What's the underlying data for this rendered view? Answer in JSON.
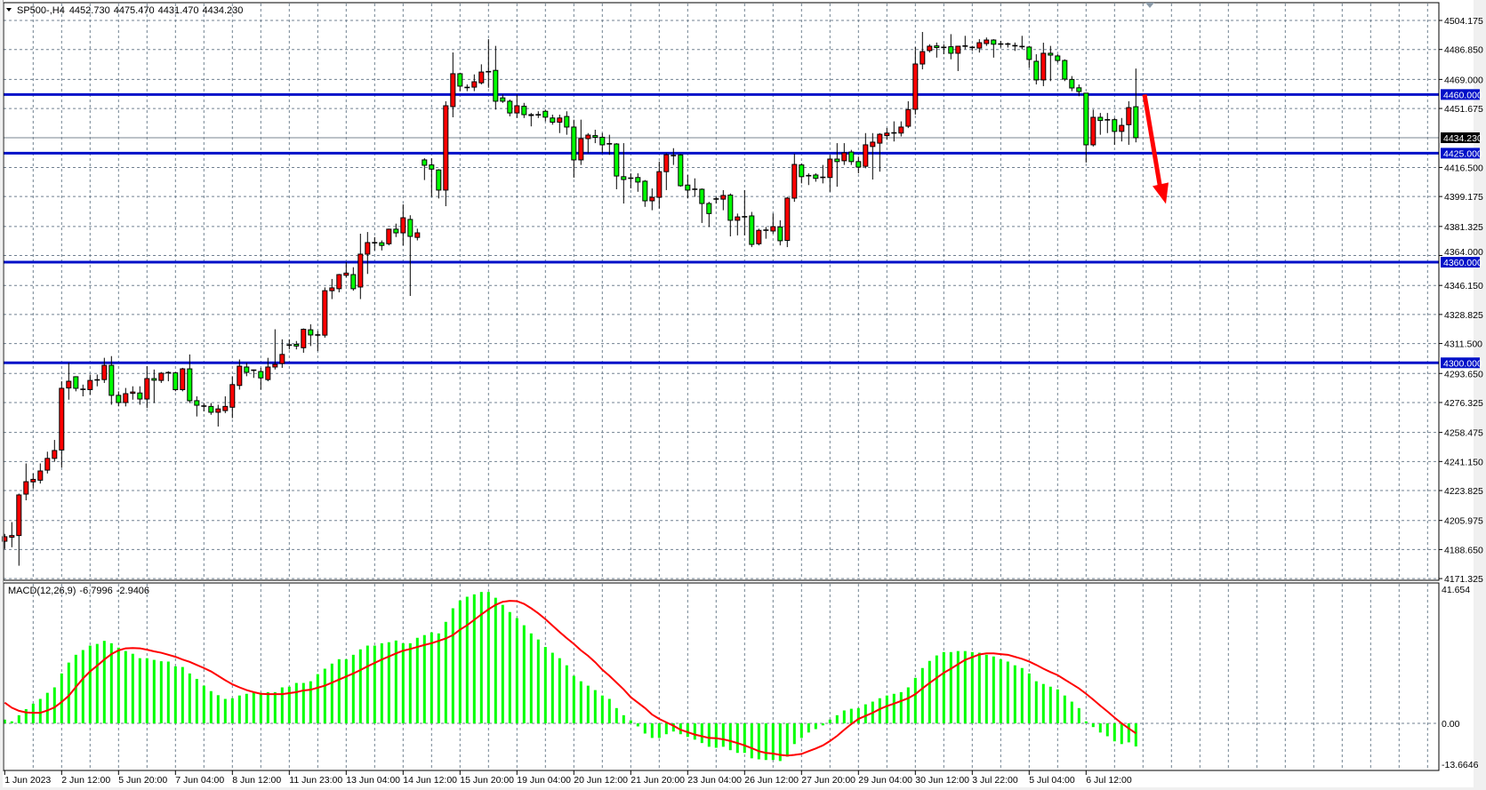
{
  "header": {
    "symbol": "SP500-,H4",
    "open": "4452.730",
    "high": "4475.470",
    "low": "4431.470",
    "close": "4434.230",
    "menu_icon": "triangle-down-icon"
  },
  "macd_header": {
    "label": "MACD(12,26,9)",
    "main": "-6.7996",
    "signal": "-2.9406"
  },
  "colors": {
    "bull_body": "#ff0000",
    "bear_body": "#00ff00",
    "wick": "#000000",
    "level_line": "#0010c8",
    "macd_histogram": "#00ff00",
    "macd_signal": "#ff0000",
    "arrow": "#ff0000",
    "grid": "#708090"
  },
  "price_axis": {
    "ticks": [
      "4504.175",
      "4486.850",
      "4469.000",
      "4451.675",
      "4416.500",
      "4399.175",
      "4381.325",
      "4364.000",
      "4346.150",
      "4328.825",
      "4311.500",
      "4293.650",
      "4276.325",
      "4258.475",
      "4241.150",
      "4223.825",
      "4205.975",
      "4188.650",
      "4171.325"
    ],
    "current_price": "4434.230",
    "levels": [
      "4460.000",
      "4425.000",
      "4360.000",
      "4300.000"
    ]
  },
  "macd_axis": {
    "ticks": [
      "41.654",
      "0.00",
      "-13.6646"
    ]
  },
  "time_axis": {
    "labels": [
      "1 Jun 2023",
      "2 Jun 12:00",
      "5 Jun 20:00",
      "7 Jun 04:00",
      "8 Jun 12:00",
      "11 Jun 23:00",
      "13 Jun 04:00",
      "14 Jun 12:00",
      "15 Jun 20:00",
      "19 Jun 04:00",
      "20 Jun 12:00",
      "21 Jun 20:00",
      "23 Jun 04:00",
      "26 Jun 12:00",
      "27 Jun 20:00",
      "29 Jun 04:00",
      "30 Jun 12:00",
      "3 Jul 22:00",
      "5 Jul 04:00",
      "6 Jul 12:00"
    ]
  },
  "annotation": {
    "type": "arrow",
    "direction": "down",
    "from_price": 4460,
    "to_price": 4398
  },
  "chart_data": {
    "type": "candlestick",
    "timeframe": "H4",
    "ylim": [
      4171.325,
      4504.175
    ],
    "grid": true,
    "candle_format": [
      "open",
      "high",
      "low",
      "close"
    ],
    "candles": [
      [
        4193.6,
        4198,
        4189,
        4196.3
      ],
      [
        4196,
        4205,
        4190,
        4197
      ],
      [
        4197,
        4222,
        4179,
        4221.2
      ],
      [
        4221.7,
        4240,
        4218,
        4229.1
      ],
      [
        4229,
        4234,
        4225,
        4230.5
      ],
      [
        4230,
        4240,
        4228,
        4235.5
      ],
      [
        4236,
        4247,
        4234,
        4243
      ],
      [
        4243,
        4254,
        4241,
        4247.7
      ],
      [
        4248,
        4289,
        4237.6,
        4284.8
      ],
      [
        4285,
        4300,
        4278,
        4289
      ],
      [
        4291.7,
        4292,
        4283,
        4284.8
      ],
      [
        4284,
        4287,
        4280,
        4284.2
      ],
      [
        4284,
        4293,
        4281,
        4289.5
      ],
      [
        4289.5,
        4293,
        4286,
        4289.8
      ],
      [
        4290,
        4303,
        4288,
        4298.5
      ],
      [
        4298.5,
        4304,
        4275,
        4280.6
      ],
      [
        4280.6,
        4283,
        4274,
        4276.3
      ],
      [
        4276.3,
        4285,
        4274,
        4281.6
      ],
      [
        4281.8,
        4286,
        4278,
        4282.6
      ],
      [
        4282,
        4286,
        4275,
        4278.4
      ],
      [
        4278.4,
        4298,
        4273,
        4290.6
      ],
      [
        4290.6,
        4296,
        4276,
        4289.6
      ],
      [
        4289.5,
        4294.5,
        4288,
        4293.8
      ],
      [
        4294,
        4295,
        4289,
        4294.1
      ],
      [
        4294,
        4294.5,
        4283,
        4284
      ],
      [
        4284,
        4297,
        4283,
        4296.4
      ],
      [
        4296.4,
        4305,
        4276,
        4277.4
      ],
      [
        4277.4,
        4280,
        4268,
        4274.7
      ],
      [
        4274.5,
        4276,
        4271,
        4274.2
      ],
      [
        4274,
        4276,
        4269,
        4270.5
      ],
      [
        4270.5,
        4275,
        4262,
        4272.5
      ],
      [
        4271.5,
        4280,
        4270,
        4274
      ],
      [
        4273.5,
        4292,
        4267,
        4287
      ],
      [
        4286.5,
        4302,
        4284,
        4298
      ],
      [
        4297.5,
        4300,
        4292,
        4294.3
      ],
      [
        4295.5,
        4296,
        4291,
        4295.6
      ],
      [
        4294.8,
        4297,
        4284,
        4291
      ],
      [
        4290,
        4303,
        4289,
        4297.5
      ],
      [
        4297.5,
        4320,
        4296,
        4299.1
      ],
      [
        4299.6,
        4314,
        4297,
        4305
      ],
      [
        4311,
        4314,
        4308,
        4310.6
      ],
      [
        4311,
        4313,
        4308,
        4310
      ],
      [
        4309,
        4320.5,
        4306,
        4320
      ],
      [
        4319.7,
        4323,
        4310,
        4316.6
      ],
      [
        4316.5,
        4319,
        4307,
        4316.6
      ],
      [
        4316.5,
        4345,
        4315,
        4343
      ],
      [
        4343,
        4350,
        4338,
        4344.7
      ],
      [
        4344.2,
        4353,
        4342,
        4352.6
      ],
      [
        4352.2,
        4360,
        4351,
        4353.5
      ],
      [
        4352.6,
        4357,
        4343,
        4344.2
      ],
      [
        4345.2,
        4377,
        4338,
        4364.8
      ],
      [
        4364.8,
        4378,
        4353,
        4371.7
      ],
      [
        4371.5,
        4375,
        4367,
        4371.6
      ],
      [
        4371.6,
        4373,
        4367,
        4370
      ],
      [
        4371,
        4380,
        4370,
        4379.7
      ],
      [
        4379.7,
        4383,
        4375,
        4377.5
      ],
      [
        4377.5,
        4394.5,
        4370,
        4386.5
      ],
      [
        4385.5,
        4388,
        4339.9,
        4375.4
      ],
      [
        4374.8,
        4380,
        4373,
        4377.5
      ],
      [
        4421,
        4422,
        4409,
        4417.8
      ],
      [
        4418,
        4422,
        4399,
        4415.5
      ],
      [
        4415,
        4415.5,
        4398,
        4403
      ],
      [
        4403,
        4456,
        4393.4,
        4453.3
      ],
      [
        4452.8,
        4485.1,
        4446.4,
        4472.4
      ],
      [
        4472.4,
        4473,
        4462,
        4465
      ],
      [
        4464,
        4466,
        4462,
        4464.2
      ],
      [
        4464.4,
        4472,
        4462,
        4467.6
      ],
      [
        4467,
        4478,
        4466,
        4473.4
      ],
      [
        4473.5,
        4493,
        4464,
        4473.6
      ],
      [
        4474.4,
        4489,
        4451,
        4456
      ],
      [
        4458,
        4460,
        4455,
        4456
      ],
      [
        4456,
        4457,
        4447,
        4449
      ],
      [
        4449,
        4460,
        4446,
        4453.3
      ],
      [
        4453,
        4455,
        4446,
        4448
      ],
      [
        4448,
        4449,
        4441,
        4447.5
      ],
      [
        4448,
        4450,
        4446,
        4447.9
      ],
      [
        4450,
        4451,
        4444,
        4446.5
      ],
      [
        4446,
        4448,
        4442,
        4443.5
      ],
      [
        4443.5,
        4448,
        4437,
        4446
      ],
      [
        4446.9,
        4450,
        4436,
        4440.6
      ],
      [
        4440.6,
        4445,
        4410.4,
        4421
      ],
      [
        4421,
        4445,
        4418,
        4433.7
      ],
      [
        4433.7,
        4437,
        4425,
        4435.8
      ],
      [
        4435.5,
        4439,
        4431,
        4434.5
      ],
      [
        4434.5,
        4437,
        4425,
        4430
      ],
      [
        4430.5,
        4436,
        4424,
        4430.6
      ],
      [
        4430.5,
        4431,
        4403.5,
        4411.4
      ],
      [
        4411,
        4431,
        4395,
        4409.3
      ],
      [
        4410,
        4413,
        4404,
        4410.1
      ],
      [
        4410.5,
        4413,
        4402,
        4407.8
      ],
      [
        4408.3,
        4409,
        4393,
        4396.6
      ],
      [
        4396.6,
        4404,
        4391,
        4398.7
      ],
      [
        4398.7,
        4420,
        4392,
        4414
      ],
      [
        4414,
        4425,
        4403,
        4424.1
      ],
      [
        4423.5,
        4428,
        4418,
        4423.6
      ],
      [
        4424,
        4424.5,
        4405,
        4405.6
      ],
      [
        4406,
        4412,
        4398,
        4403
      ],
      [
        4403.4,
        4410,
        4399,
        4403.5
      ],
      [
        4403.5,
        4404,
        4383.4,
        4395
      ],
      [
        4395,
        4396,
        4381,
        4389
      ],
      [
        4397.6,
        4399,
        4395,
        4397.7
      ],
      [
        4397.6,
        4403,
        4391,
        4399.8
      ],
      [
        4400,
        4401,
        4375.4,
        4385
      ],
      [
        4385,
        4389,
        4376,
        4387
      ],
      [
        4387,
        4403,
        4376,
        4387.1
      ],
      [
        4387.6,
        4390,
        4369,
        4370.6
      ],
      [
        4371,
        4380,
        4370,
        4379
      ],
      [
        4379,
        4381,
        4374,
        4379.1
      ],
      [
        4378.6,
        4389,
        4377,
        4381.2
      ],
      [
        4381,
        4385,
        4370,
        4372.8
      ],
      [
        4373,
        4399,
        4369,
        4398.2
      ],
      [
        4398.2,
        4424.7,
        4396,
        4418.3
      ],
      [
        4418,
        4419,
        4407,
        4411
      ],
      [
        4411.5,
        4413,
        4406,
        4411.6
      ],
      [
        4412,
        4413,
        4408,
        4410
      ],
      [
        4410.5,
        4418,
        4407,
        4410.6
      ],
      [
        4410.5,
        4424,
        4402,
        4421.5
      ],
      [
        4421.5,
        4431,
        4405,
        4420
      ],
      [
        4420.5,
        4431,
        4418,
        4425.2
      ],
      [
        4425.7,
        4427,
        4418,
        4420
      ],
      [
        4420,
        4423,
        4413,
        4416.7
      ],
      [
        4417.2,
        4437,
        4416,
        4430
      ],
      [
        4429,
        4437,
        4409.3,
        4431.6
      ],
      [
        4431,
        4437,
        4414,
        4436.3
      ],
      [
        4435.5,
        4440,
        4433,
        4437
      ],
      [
        4437,
        4444,
        4432,
        4437.1
      ],
      [
        4437,
        4444,
        4435,
        4440.6
      ],
      [
        4441.1,
        4456,
        4440,
        4451
      ],
      [
        4451.2,
        4488.3,
        4448,
        4478.2
      ],
      [
        4478.2,
        4497.3,
        4475,
        4485.6
      ],
      [
        4486.2,
        4490,
        4485,
        4488.8
      ],
      [
        4489,
        4491,
        4482,
        4488
      ],
      [
        4488,
        4490,
        4484,
        4488.1
      ],
      [
        4488.5,
        4496,
        4481,
        4484.6
      ],
      [
        4484.6,
        4489,
        4474,
        4488.8
      ],
      [
        4488.8,
        4495,
        4487,
        4488.9
      ],
      [
        4488,
        4489,
        4486,
        4488.1
      ],
      [
        4487.7,
        4493,
        4485,
        4490.9
      ],
      [
        4490.4,
        4494,
        4489,
        4492.5
      ],
      [
        4492.5,
        4493,
        4482,
        4490
      ],
      [
        4490,
        4492,
        4488,
        4490.1
      ],
      [
        4490,
        4491,
        4488,
        4490.1
      ],
      [
        4489,
        4491,
        4486,
        4489.1
      ],
      [
        4488.5,
        4495,
        4487,
        4488.6
      ],
      [
        4488.3,
        4489,
        4476,
        4480.9
      ],
      [
        4479.8,
        4484,
        4466,
        4468.7
      ],
      [
        4468.7,
        4490.9,
        4465,
        4484.6
      ],
      [
        4484.6,
        4489,
        4468,
        4483.5
      ],
      [
        4483,
        4484,
        4479,
        4480.3
      ],
      [
        4480.3,
        4481,
        4468,
        4469.2
      ],
      [
        4469,
        4471,
        4462,
        4463.9
      ],
      [
        4464,
        4466,
        4459,
        4461.8
      ],
      [
        4460.8,
        4461,
        4419.4,
        4430
      ],
      [
        4430,
        4451,
        4429,
        4446.4
      ],
      [
        4446.4,
        4449,
        4436,
        4444.5
      ],
      [
        4444.8,
        4449,
        4437,
        4444.9
      ],
      [
        4445,
        4446,
        4430,
        4438
      ],
      [
        4438,
        4446,
        4432,
        4441.6
      ],
      [
        4442,
        4456,
        4430,
        4452.2
      ],
      [
        4452.73,
        4475.47,
        4431.47,
        4434.23
      ]
    ],
    "horizontal_levels": [
      4460,
      4425,
      4360,
      4300
    ],
    "current_price": 4434.23,
    "macd": {
      "params": "12,26,9",
      "ylim": [
        -13.6646,
        41.654
      ],
      "main": [
        1.1,
        0.6,
        2.4,
        4.2,
        5.8,
        7.2,
        9.0,
        10.6,
        14.7,
        17.9,
        20.2,
        21.6,
        22.9,
        23.4,
        24.3,
        23.6,
        22.3,
        21.3,
        20.5,
        19.2,
        19.2,
        18.7,
        18.3,
        18.2,
        16.8,
        16.6,
        14.7,
        13.1,
        11.1,
        9.5,
        8.3,
        7.2,
        7.4,
        8.2,
        8.7,
        9.0,
        9.0,
        9.2,
        9.2,
        10.6,
        10.8,
        11.9,
        11.9,
        12.4,
        14.5,
        16.1,
        17.6,
        18.9,
        18.9,
        20.2,
        21.8,
        22.9,
        22.9,
        23.6,
        23.9,
        24.4,
        23.6,
        23.6,
        25.2,
        26.0,
        26.8,
        26.5,
        29.9,
        33.9,
        36.2,
        37.3,
        38.0,
        38.7,
        38.7,
        37.0,
        34.9,
        32.8,
        31.0,
        28.9,
        26.5,
        24.7,
        22.5,
        20.8,
        19.2,
        17.1,
        14.0,
        12.4,
        11.1,
        9.8,
        8.2,
        7.2,
        4.5,
        2.4,
        0.9,
        -0.9,
        -3.0,
        -4.3,
        -4.3,
        -3.2,
        -2.4,
        -3.2,
        -4.0,
        -4.8,
        -5.8,
        -6.9,
        -7.2,
        -6.9,
        -7.9,
        -8.7,
        -8.7,
        -10.3,
        -10.6,
        -10.8,
        -10.8,
        -11.1,
        -9.8,
        -6.1,
        -4.3,
        -2.7,
        -1.7,
        -0.6,
        1.1,
        2.4,
        3.8,
        4.3,
        4.5,
        5.6,
        6.4,
        7.4,
        8.2,
        8.7,
        9.2,
        10.6,
        13.4,
        16.3,
        18.4,
        20.0,
        21.0,
        21.0,
        21.3,
        21.3,
        21.0,
        20.8,
        20.2,
        19.7,
        18.9,
        18.2,
        17.1,
        16.3,
        14.7,
        12.4,
        11.6,
        10.8,
        10.0,
        8.2,
        6.4,
        4.5,
        0.6,
        -1.1,
        -2.7,
        -3.8,
        -5.3,
        -6.1,
        -5.6,
        -6.7996
      ],
      "signal": [
        6.1,
        4.6,
        3.7,
        3.2,
        3.1,
        3.1,
        3.8,
        4.7,
        6.3,
        8.1,
        10.7,
        13.2,
        15.3,
        17.0,
        18.8,
        20.4,
        21.5,
        22.1,
        22.2,
        22.1,
        21.7,
        21.2,
        20.8,
        20.2,
        19.6,
        18.8,
        18.1,
        17.2,
        16.3,
        15.3,
        14.0,
        12.7,
        11.5,
        10.6,
        9.8,
        9.2,
        8.7,
        8.6,
        8.6,
        8.6,
        8.9,
        9.2,
        9.7,
        9.9,
        10.5,
        11.1,
        12.0,
        12.9,
        13.8,
        14.7,
        15.7,
        16.8,
        17.8,
        18.8,
        19.7,
        20.6,
        21.4,
        21.9,
        22.5,
        23.1,
        23.6,
        24.3,
        25.0,
        26.0,
        27.6,
        28.9,
        30.5,
        32.1,
        33.6,
        34.9,
        35.8,
        36.1,
        36.0,
        35.2,
        33.9,
        32.4,
        30.7,
        28.8,
        26.9,
        25.1,
        23.4,
        21.5,
        19.9,
        18.0,
        15.8,
        14.0,
        12.0,
        10.0,
        7.7,
        6.1,
        4.5,
        2.6,
        1.3,
        0.3,
        -0.7,
        -1.9,
        -2.6,
        -3.3,
        -3.8,
        -4.3,
        -4.4,
        -4.7,
        -5.2,
        -5.8,
        -6.5,
        -7.3,
        -8.2,
        -8.7,
        -8.9,
        -9.3,
        -9.5,
        -9.3,
        -9.0,
        -8.2,
        -7.4,
        -6.5,
        -5.2,
        -3.7,
        -1.9,
        -0.2,
        1.3,
        2.2,
        3.1,
        4.2,
        5.1,
        5.8,
        6.6,
        7.4,
        8.6,
        10.3,
        11.9,
        13.4,
        14.9,
        16.1,
        17.4,
        18.7,
        19.5,
        20.3,
        20.6,
        20.6,
        20.4,
        20.2,
        19.6,
        19.0,
        18.2,
        17.2,
        16.1,
        15.1,
        14.2,
        12.9,
        11.6,
        10.3,
        8.7,
        7.0,
        5.2,
        3.5,
        1.7,
        0.0,
        -1.5,
        -2.9406
      ]
    }
  }
}
